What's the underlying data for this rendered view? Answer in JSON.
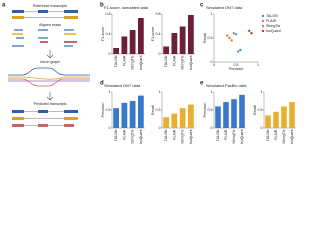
{
  "panels": [
    "a",
    "b",
    "c",
    "d",
    "e"
  ],
  "diagram": {
    "labels": [
      "Reference transcripts",
      "Aligned reads",
      "Intron graph",
      "Predicted transcripts"
    ]
  },
  "chart_data": [
    {
      "type": "bar",
      "title": "F1-score, simulated data",
      "ylabel": "F1-score",
      "categories": [
        "TALON",
        "FLAIR",
        "StringTie",
        "IsoQuant"
      ],
      "values": [
        0.12,
        0.35,
        0.48,
        0.72
      ],
      "color": "#6b1f3a",
      "ylim": [
        0,
        0.8
      ],
      "yticks": [
        0,
        0.4,
        0.8
      ]
    },
    {
      "type": "bar",
      "ylabel": "F1-score",
      "categories": [
        "TALON",
        "FLAIR",
        "StringTie",
        "IsoQuant"
      ],
      "values": [
        0.15,
        0.42,
        0.55,
        0.78
      ],
      "color": "#6b1f3a",
      "ylim": [
        0,
        0.8
      ],
      "yticks": [
        0,
        0.4,
        0.8
      ]
    },
    {
      "type": "scatter",
      "title": "Simulated ONT data",
      "xlabel": "Precision",
      "ylabel": "Recall",
      "xlim": [
        0,
        1
      ],
      "ylim": [
        0,
        1
      ],
      "xticks": [
        0,
        0.5,
        1
      ],
      "yticks": [
        0,
        0.5,
        1
      ],
      "series": [
        {
          "name": "TALON",
          "color": "#4a8fd6",
          "x": [
            0.55,
            0.6
          ],
          "values": [
            0.22,
            0.25
          ]
        },
        {
          "name": "FLAIR",
          "color": "#e07b39",
          "x": [
            0.3,
            0.35,
            0.4
          ],
          "values": [
            0.55,
            0.5,
            0.45
          ]
        },
        {
          "name": "StringTie",
          "color": "#8e8e8e",
          "x": [
            0.45,
            0.5
          ],
          "values": [
            0.6,
            0.58
          ]
        },
        {
          "name": "IsoQuant",
          "color": "#c0392b",
          "x": [
            0.8,
            0.85
          ],
          "values": [
            0.65,
            0.6
          ]
        }
      ]
    },
    {
      "type": "bar",
      "title": "Simulated ONT data",
      "ylabel": "Precision",
      "categories": [
        "TALON",
        "FLAIR",
        "StringTie",
        "IsoQuant"
      ],
      "values": [
        0.55,
        0.7,
        0.75,
        0.9
      ],
      "color": "#3a78c9",
      "ylim": [
        0,
        1
      ],
      "yticks": [
        0,
        0.5,
        1
      ]
    },
    {
      "type": "bar",
      "ylabel": "Recall",
      "categories": [
        "TALON",
        "FLAIR",
        "StringTie",
        "IsoQuant"
      ],
      "values": [
        0.3,
        0.4,
        0.55,
        0.65
      ],
      "color": "#e8b030",
      "ylim": [
        0,
        1
      ],
      "yticks": [
        0,
        0.5,
        1
      ]
    },
    {
      "type": "bar",
      "title": "Simulated PacBio data",
      "ylabel": "Precision",
      "categories": [
        "TALON",
        "FLAIR",
        "StringTie",
        "IsoQuant"
      ],
      "values": [
        0.6,
        0.72,
        0.8,
        0.92
      ],
      "color": "#3a78c9",
      "ylim": [
        0,
        1
      ],
      "yticks": [
        0,
        0.5,
        1
      ]
    },
    {
      "type": "bar",
      "ylabel": "Recall",
      "categories": [
        "TALON",
        "FLAIR",
        "StringTie",
        "IsoQuant"
      ],
      "values": [
        0.35,
        0.45,
        0.6,
        0.72
      ],
      "color": "#e8b030",
      "ylim": [
        0,
        1
      ],
      "yticks": [
        0,
        0.5,
        1
      ]
    }
  ]
}
